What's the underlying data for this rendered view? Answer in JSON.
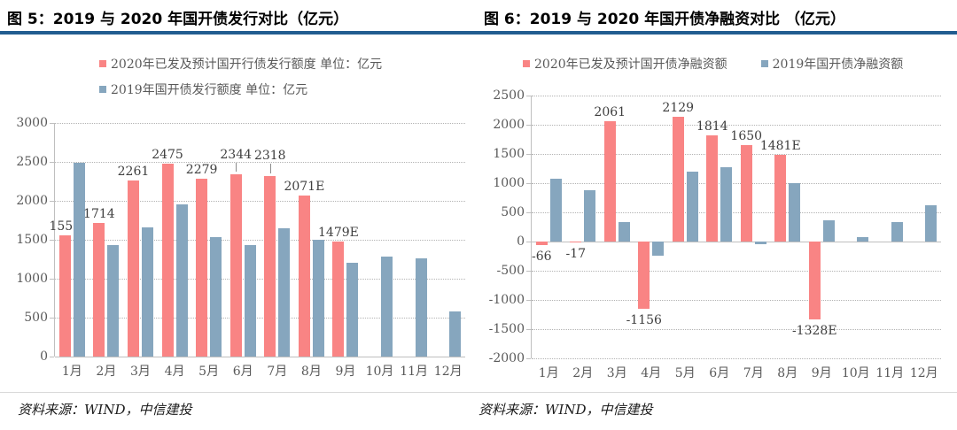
{
  "accent": {
    "title_rule_color": "#215d90"
  },
  "chart_data": [
    {
      "type": "bar",
      "title": "图 5：2019 与 2020 年国开债发行对比（亿元）",
      "source": "资料来源：WIND，中信建投",
      "categories": [
        "1月",
        "2月",
        "3月",
        "4月",
        "5月",
        "6月",
        "7月",
        "8月",
        "9月",
        "10月",
        "11月",
        "12月"
      ],
      "series": [
        {
          "name": "2020年已发及预计国开行债发行额度  单位：亿元",
          "color": "#f98484",
          "values": [
            1559,
            1714,
            2261,
            2475,
            2279,
            2344,
            2318,
            2071,
            1479,
            null,
            null,
            null
          ],
          "labels": [
            "1559",
            "1714",
            "2261",
            "2475",
            "2279",
            "2344",
            "2318",
            "2071E",
            "1479E",
            "",
            "",
            ""
          ],
          "label_dy": [
            0,
            0,
            0,
            0,
            0,
            -12,
            -13,
            0,
            0,
            0,
            0,
            0
          ],
          "leaders": [
            0,
            0,
            0,
            0,
            0,
            1,
            1,
            0,
            0,
            0,
            0,
            0
          ]
        },
        {
          "name": "2019年国开债发行额度  单位：亿元",
          "color": "#86a6be",
          "values": [
            2490,
            1430,
            1660,
            1950,
            1535,
            1435,
            1650,
            1500,
            1200,
            1285,
            1265,
            585
          ]
        }
      ],
      "ylim": [
        0,
        3000
      ],
      "ytick_step": 500,
      "grid": "dotted-horizontal",
      "legend_position": "top-left-stacked"
    },
    {
      "type": "bar",
      "title": "图 6：2019 与 2020 年国开债净融资对比 （亿元）",
      "source": "资料来源：WIND，中信建投",
      "categories": [
        "1月",
        "2月",
        "3月",
        "4月",
        "5月",
        "6月",
        "7月",
        "8月",
        "9月",
        "10月",
        "11月",
        "12月"
      ],
      "series": [
        {
          "name": "2020年已发及预计国开债净融资额",
          "color": "#f98484",
          "values": [
            -66,
            -17,
            2061,
            -1156,
            2129,
            1814,
            1650,
            1481,
            -1328,
            null,
            null,
            null
          ],
          "labels": [
            "-66",
            "-17",
            "2061",
            "-1156",
            "2129",
            "1814",
            "1650",
            "1481E",
            "-1328E",
            "",
            "",
            ""
          ],
          "label_dy": [
            0,
            0,
            0,
            0,
            0,
            0,
            0,
            0,
            0,
            0,
            0,
            0
          ],
          "leaders": [
            0,
            0,
            0,
            0,
            0,
            0,
            0,
            0,
            0,
            0,
            0,
            0
          ]
        },
        {
          "name": "2019年国开债净融资额",
          "color": "#86a6be",
          "values": [
            1080,
            885,
            330,
            -240,
            1200,
            1280,
            -45,
            1000,
            365,
            70,
            330,
            620
          ]
        }
      ],
      "ylim": [
        -2000,
        2500
      ],
      "ytick_step": 500,
      "grid": "dotted-horizontal",
      "legend_position": "top-inline"
    }
  ]
}
